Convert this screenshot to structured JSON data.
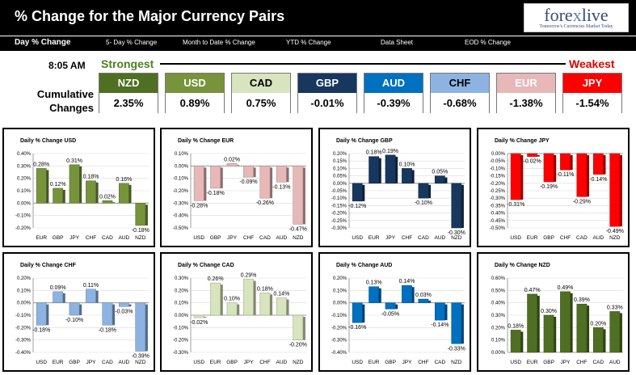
{
  "header": {
    "title": "% Change for the Major Currency Pairs",
    "logo": {
      "pre": "fore",
      "x": "x",
      "post": "live",
      "tagline": "Tomorrow's Currencies Market Today"
    }
  },
  "nav": [
    "Day % Change",
    "5- Day % Change",
    "Month to Date % Change",
    "YTD % Change",
    "Data Sheet",
    "EOD % Change"
  ],
  "time": "8:05 AM",
  "strongest_label": "Strongest",
  "weakest_label": "Weakest",
  "cumulative_label": {
    "line1": "Cumulative",
    "line2": "Changes"
  },
  "cumulative": [
    {
      "currency": "NZD",
      "value": "2.35%",
      "color": "#4f6f22",
      "text_color": "#ffffff"
    },
    {
      "currency": "USD",
      "value": "0.89%",
      "color": "#77933c",
      "text_color": "#ffffff"
    },
    {
      "currency": "CAD",
      "value": "0.75%",
      "color": "#d7e4bd",
      "text_color": "#000000"
    },
    {
      "currency": "GBP",
      "value": "-0.01%",
      "color": "#17375e",
      "text_color": "#ffffff"
    },
    {
      "currency": "AUD",
      "value": "-0.39%",
      "color": "#0070c0",
      "text_color": "#ffffff"
    },
    {
      "currency": "CHF",
      "value": "-0.68%",
      "color": "#8db3e2",
      "text_color": "#000000"
    },
    {
      "currency": "EUR",
      "value": "-1.38%",
      "color": "#e6b9b8",
      "text_color": "#ffffff"
    },
    {
      "currency": "JPY",
      "value": "-1.54%",
      "color": "#ff0000",
      "text_color": "#ffffff"
    }
  ],
  "chart_data": [
    {
      "type": "bar",
      "title": "Daily % Change USD",
      "color": "#77933c",
      "categories": [
        "EUR",
        "GBP",
        "JPY",
        "CHF",
        "CAD",
        "AUD",
        "NZD"
      ],
      "values": [
        0.28,
        0.12,
        0.31,
        0.18,
        0.02,
        0.16,
        -0.18
      ],
      "labels": [
        "0.28%",
        "0.12%",
        "0.31%",
        "0.18%",
        "0.02%",
        "0.16%",
        "-0.18%"
      ],
      "ylim": [
        -0.2,
        0.4
      ],
      "ticks": [
        "0.40%",
        "0.30%",
        "0.20%",
        "0.10%",
        "0.00%",
        "-0.10%",
        "-0.20%"
      ]
    },
    {
      "type": "bar",
      "title": "Daily % Change EUR",
      "color": "#e6b9b8",
      "categories": [
        "USD",
        "GBP",
        "JPY",
        "CHF",
        "CAD",
        "AUD",
        "NZD"
      ],
      "values": [
        -0.28,
        -0.18,
        0.02,
        -0.09,
        -0.26,
        -0.13,
        -0.47
      ],
      "labels": [
        "-0.28%",
        "-0.18%",
        "0.02%",
        "-0.09%",
        "-0.26%",
        "-0.13%",
        "-0.47%"
      ],
      "ylim": [
        -0.5,
        0.1
      ],
      "ticks": [
        "0.10%",
        "0.00%",
        "-0.10%",
        "-0.20%",
        "-0.30%",
        "-0.40%",
        "-0.50%"
      ]
    },
    {
      "type": "bar",
      "title": "Daily % Change GBP",
      "color": "#17375e",
      "categories": [
        "USD",
        "EUR",
        "JPY",
        "CHF",
        "CAD",
        "AUD",
        "NZD"
      ],
      "values": [
        -0.12,
        0.18,
        0.19,
        0.1,
        -0.1,
        0.05,
        -0.3
      ],
      "labels": [
        "-0.12%",
        "0.18%",
        "0.19%",
        "0.10%",
        "-0.10%",
        "0.05%",
        "-0.30%"
      ],
      "ylim": [
        -0.3,
        0.2
      ],
      "ticks": [
        "0.20%",
        "0.15%",
        "0.10%",
        "0.05%",
        "0.00%",
        "-0.05%",
        "-0.10%",
        "-0.15%",
        "-0.20%",
        "-0.25%",
        "-0.30%"
      ]
    },
    {
      "type": "bar",
      "title": "Daily % Change JPY",
      "color": "#ff0000",
      "categories": [
        "USD",
        "EUR",
        "GBP",
        "CHF",
        "CAD",
        "AUD",
        "NZD"
      ],
      "values": [
        -0.31,
        -0.02,
        -0.19,
        -0.11,
        -0.29,
        -0.14,
        -0.49
      ],
      "labels": [
        "-0.31%",
        "-0.02%",
        "-0.19%",
        "-0.11%",
        "-0.29%",
        "-0.14%",
        "-0.49%"
      ],
      "ylim": [
        -0.5,
        0.0
      ],
      "ticks": [
        "0.00%",
        "-0.05%",
        "-0.10%",
        "-0.15%",
        "-0.20%",
        "-0.25%",
        "-0.30%",
        "-0.35%",
        "-0.40%",
        "-0.45%",
        "-0.50%"
      ]
    },
    {
      "type": "bar",
      "title": "Daily % Change CHF",
      "color": "#8db3e2",
      "categories": [
        "USD",
        "EUR",
        "GBP",
        "JPY",
        "CAD",
        "AUD",
        "NZD"
      ],
      "values": [
        -0.18,
        0.09,
        -0.1,
        0.11,
        -0.18,
        -0.03,
        -0.39
      ],
      "labels": [
        "-0.18%",
        "0.09%",
        "-0.10%",
        "0.11%",
        "-0.18%",
        "-0.03%",
        "-0.39%"
      ],
      "ylim": [
        -0.4,
        0.2
      ],
      "ticks": [
        "0.20%",
        "0.10%",
        "0.00%",
        "-0.10%",
        "-0.20%",
        "-0.30%",
        "-0.40%"
      ]
    },
    {
      "type": "bar",
      "title": "Daily % Change CAD",
      "color": "#d7e4bd",
      "categories": [
        "USD",
        "EUR",
        "GBP",
        "JPY",
        "CHF",
        "AUD",
        "NZD"
      ],
      "values": [
        -0.02,
        0.26,
        0.1,
        0.29,
        0.18,
        0.14,
        -0.2
      ],
      "labels": [
        "-0.02%",
        "0.26%",
        "0.10%",
        "0.29%",
        "0.18%",
        "0.14%",
        "-0.20%"
      ],
      "ylim": [
        -0.3,
        0.3
      ],
      "ticks": [
        "0.30%",
        "0.20%",
        "0.10%",
        "0.00%",
        "-0.10%",
        "-0.20%",
        "-0.30%"
      ]
    },
    {
      "type": "bar",
      "title": "Daily % Change AUD",
      "color": "#0070c0",
      "categories": [
        "USD",
        "EUR",
        "GBP",
        "JPY",
        "CHF",
        "CAD",
        "NZD"
      ],
      "values": [
        -0.16,
        0.13,
        -0.05,
        0.14,
        0.03,
        -0.14,
        -0.33
      ],
      "labels": [
        "-0.16%",
        "0.13%",
        "-0.05%",
        "0.14%",
        "0.03%",
        "-0.14%",
        "-0.33%"
      ],
      "ylim": [
        -0.4,
        0.2
      ],
      "ticks": [
        "0.20%",
        "0.10%",
        "0.00%",
        "-0.10%",
        "-0.20%",
        "-0.30%",
        "-0.40%"
      ]
    },
    {
      "type": "bar",
      "title": "Daily % Change NZD",
      "color": "#4f6f22",
      "categories": [
        "USD",
        "EUR",
        "GBP",
        "JPY",
        "CHF",
        "CAD",
        "AUD"
      ],
      "values": [
        0.18,
        0.47,
        0.3,
        0.49,
        0.39,
        0.2,
        0.33
      ],
      "labels": [
        "0.18%",
        "0.47%",
        "0.30%",
        "0.49%",
        "0.39%",
        "0.20%",
        "0.33%"
      ],
      "ylim": [
        0.0,
        0.6
      ],
      "ticks": [
        "0.60%",
        "0.50%",
        "0.40%",
        "0.30%",
        "0.20%",
        "0.10%",
        "0.00%"
      ]
    }
  ]
}
